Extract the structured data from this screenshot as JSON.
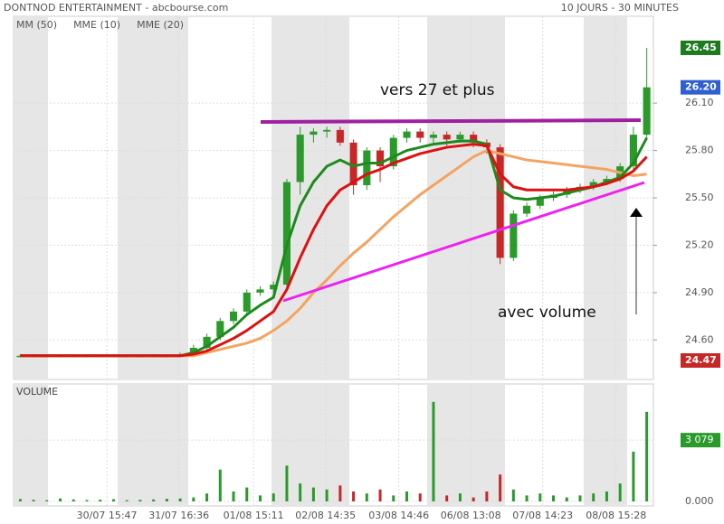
{
  "chart_data": [
    {
      "type": "candlestick",
      "title": "DONTNOD ENTERTAINMENT - abcbourse.com",
      "subtitle": "10 JOURS - 30 MINUTES",
      "x": [
        0,
        1,
        2,
        3,
        4,
        5,
        6,
        7,
        8,
        9,
        10,
        11,
        12,
        13,
        14,
        15,
        16,
        17,
        18,
        19,
        20,
        21,
        22,
        23,
        24,
        25,
        26,
        27,
        28,
        29,
        30,
        31,
        32,
        33,
        34,
        35,
        36,
        37,
        38,
        39,
        40,
        41,
        42,
        43,
        44,
        45,
        46,
        47
      ],
      "xlim": [
        -0.5,
        47.5
      ],
      "xticks": [
        {
          "value": 6.5,
          "label": "30/07 15:47"
        },
        {
          "value": 11.9,
          "label": "31/07 16:36"
        },
        {
          "value": 17.5,
          "label": "01/08 15:11"
        },
        {
          "value": 22.9,
          "label": "02/08 14:35"
        },
        {
          "value": 28.4,
          "label": "03/08 14:46"
        },
        {
          "value": 33.8,
          "label": "06/08 13:08"
        },
        {
          "value": 39.2,
          "label": "07/08 14:23"
        },
        {
          "value": 44.7,
          "label": "08/08 15:28"
        }
      ],
      "ylim": [
        24.35,
        26.65
      ],
      "yticks": [
        {
          "value": 24.6,
          "label": "24.60"
        },
        {
          "value": 24.9,
          "label": "24.90"
        },
        {
          "value": 25.2,
          "label": "25.20"
        },
        {
          "value": 25.5,
          "label": "25.50"
        },
        {
          "value": 25.8,
          "label": "25.80"
        },
        {
          "value": 26.1,
          "label": "26.10"
        }
      ],
      "grid": true,
      "up_color": "#2a9a2a",
      "down_color": "#c62828",
      "open": [
        24.5,
        24.5,
        24.5,
        24.5,
        24.5,
        24.5,
        24.5,
        24.5,
        24.5,
        24.5,
        24.5,
        24.5,
        24.5,
        24.51,
        24.55,
        24.62,
        24.72,
        24.78,
        24.9,
        24.92,
        24.95,
        25.6,
        25.9,
        25.92,
        25.93,
        25.85,
        25.58,
        25.8,
        25.7,
        25.88,
        25.92,
        25.88,
        25.9,
        25.87,
        25.9,
        25.85,
        25.82,
        25.12,
        25.4,
        25.45,
        25.5,
        25.52,
        25.55,
        25.57,
        25.6,
        25.62,
        25.7,
        25.9
      ],
      "high": [
        24.51,
        24.51,
        24.51,
        24.51,
        24.51,
        24.51,
        24.51,
        24.51,
        24.51,
        24.51,
        24.51,
        24.51,
        24.52,
        24.57,
        24.64,
        24.74,
        24.8,
        24.92,
        24.94,
        24.97,
        25.62,
        25.95,
        25.94,
        25.95,
        25.95,
        25.87,
        25.82,
        25.82,
        25.9,
        25.94,
        25.94,
        25.92,
        25.92,
        25.92,
        25.92,
        25.87,
        25.84,
        25.42,
        25.47,
        25.52,
        25.54,
        25.57,
        25.59,
        25.62,
        25.64,
        25.72,
        25.95,
        26.45
      ],
      "low": [
        24.49,
        24.49,
        24.49,
        24.49,
        24.49,
        24.49,
        24.49,
        24.49,
        24.49,
        24.49,
        24.49,
        24.49,
        24.49,
        24.5,
        24.54,
        24.6,
        24.7,
        24.76,
        24.88,
        24.9,
        24.93,
        25.52,
        25.85,
        25.88,
        25.83,
        25.52,
        25.55,
        25.6,
        25.68,
        25.85,
        25.85,
        25.85,
        25.83,
        25.85,
        25.82,
        25.78,
        25.08,
        25.1,
        25.38,
        25.43,
        25.48,
        25.5,
        25.53,
        25.55,
        25.58,
        25.6,
        25.68,
        25.88
      ],
      "close": [
        24.5,
        24.5,
        24.5,
        24.5,
        24.5,
        24.5,
        24.5,
        24.5,
        24.5,
        24.5,
        24.5,
        24.5,
        24.51,
        24.55,
        24.62,
        24.72,
        24.78,
        24.9,
        24.92,
        24.95,
        25.6,
        25.9,
        25.92,
        25.93,
        25.85,
        25.58,
        25.8,
        25.7,
        25.88,
        25.92,
        25.88,
        25.9,
        25.87,
        25.9,
        25.85,
        25.82,
        25.12,
        25.4,
        25.45,
        25.5,
        25.52,
        25.55,
        25.57,
        25.6,
        25.62,
        25.7,
        25.9,
        26.2
      ],
      "series": [
        {
          "name": "MM (50)",
          "color": "#f4a460",
          "values": [
            24.5,
            24.5,
            24.5,
            24.5,
            24.5,
            24.5,
            24.5,
            24.5,
            24.5,
            24.5,
            24.5,
            24.5,
            24.5,
            24.5,
            24.52,
            24.54,
            24.56,
            24.58,
            24.61,
            24.66,
            24.72,
            24.8,
            24.9,
            24.98,
            25.07,
            25.15,
            25.22,
            25.3,
            25.38,
            25.45,
            25.52,
            25.58,
            25.64,
            25.7,
            25.76,
            25.8,
            25.78,
            25.76,
            25.74,
            25.73,
            25.72,
            25.71,
            25.7,
            25.69,
            25.68,
            25.66,
            25.64,
            25.65
          ]
        },
        {
          "name": "MME (10)",
          "color": "#1e8a1e",
          "values": [
            24.5,
            24.5,
            24.5,
            24.5,
            24.5,
            24.5,
            24.5,
            24.5,
            24.5,
            24.5,
            24.5,
            24.5,
            24.5,
            24.52,
            24.56,
            24.62,
            24.68,
            24.76,
            24.82,
            24.87,
            25.2,
            25.45,
            25.6,
            25.7,
            25.74,
            25.7,
            25.72,
            25.72,
            25.76,
            25.8,
            25.82,
            25.84,
            25.85,
            25.86,
            25.86,
            25.84,
            25.55,
            25.5,
            25.49,
            25.5,
            25.51,
            25.53,
            25.55,
            25.57,
            25.6,
            25.63,
            25.72,
            25.88
          ]
        },
        {
          "name": "MME (20)",
          "color": "#dd1111",
          "values": [
            24.5,
            24.5,
            24.5,
            24.5,
            24.5,
            24.5,
            24.5,
            24.5,
            24.5,
            24.5,
            24.5,
            24.5,
            24.5,
            24.51,
            24.53,
            24.57,
            24.61,
            24.66,
            24.72,
            24.78,
            24.92,
            25.12,
            25.3,
            25.45,
            25.55,
            25.6,
            25.65,
            25.68,
            25.72,
            25.75,
            25.78,
            25.8,
            25.82,
            25.83,
            25.84,
            25.83,
            25.65,
            25.57,
            25.55,
            25.55,
            25.55,
            25.55,
            25.56,
            25.57,
            25.59,
            25.62,
            25.67,
            25.76
          ]
        }
      ],
      "price_markers": [
        {
          "value": 26.45,
          "label": "26.45",
          "color": "#1e7a1e"
        },
        {
          "value": 26.2,
          "label": "26.20",
          "color": "#2f5fd0"
        },
        {
          "value": 24.47,
          "label": "24.47",
          "color": "#c62828"
        }
      ],
      "annotations": [
        "vers 27 et plus",
        "avec volume"
      ]
    },
    {
      "type": "bar",
      "title": "VOLUME",
      "values": [
        120,
        80,
        60,
        150,
        100,
        70,
        90,
        110,
        60,
        80,
        100,
        130,
        150,
        200,
        400,
        1600,
        500,
        700,
        300,
        400,
        1800,
        900,
        700,
        600,
        800,
        500,
        400,
        600,
        300,
        500,
        400,
        5000,
        300,
        400,
        200,
        500,
        1350,
        600,
        300,
        400,
        300,
        200,
        300,
        400,
        500,
        900,
        2500,
        4500
      ],
      "ylim": [
        0,
        5900
      ],
      "yticks": [
        {
          "value": 0,
          "label": "0.000"
        },
        {
          "value": 3079,
          "label": "3 079"
        }
      ],
      "marker_color": "#2a9a2a"
    }
  ]
}
